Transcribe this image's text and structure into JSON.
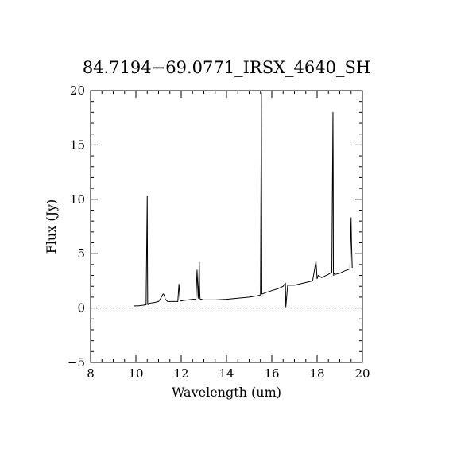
{
  "chart_data": {
    "type": "line",
    "title": "84.7194−69.0771_IRSX_4640_SH",
    "xlabel": "Wavelength (um)",
    "ylabel": "Flux (Jy)",
    "xlim": [
      8,
      20
    ],
    "ylim": [
      -5,
      20
    ],
    "x_ticks": [
      8,
      10,
      12,
      14,
      16,
      18,
      20
    ],
    "x_tick_labels": [
      "8",
      "10",
      "12",
      "14",
      "16",
      "18",
      "20"
    ],
    "y_ticks": [
      -5,
      0,
      5,
      10,
      15,
      20
    ],
    "y_tick_labels": [
      "−5",
      "0",
      "5",
      "10",
      "15",
      "20"
    ],
    "zero_line": true,
    "grid": false,
    "series": [
      {
        "x": [
          9.9,
          10.1,
          10.3,
          10.45,
          10.5,
          10.51,
          10.52,
          10.53,
          10.55,
          10.6,
          10.8,
          11.0,
          11.1,
          11.2,
          11.25,
          11.3,
          11.4,
          11.6,
          11.85,
          11.9,
          11.95,
          12.0,
          12.1,
          12.3,
          12.5,
          12.65,
          12.7,
          12.75,
          12.8,
          12.81,
          12.83,
          12.85,
          12.9,
          13.0,
          13.5,
          14.0,
          14.5,
          15.0,
          15.3,
          15.5,
          15.54,
          15.55,
          15.56,
          15.6,
          15.7,
          16.0,
          16.3,
          16.5,
          16.6,
          16.62,
          16.7,
          17.0,
          17.4,
          17.8,
          17.95,
          18.0,
          18.05,
          18.2,
          18.5,
          18.65,
          18.7,
          18.71,
          18.72,
          18.73,
          18.75,
          18.8,
          19.0,
          19.2,
          19.45,
          19.5,
          19.52,
          19.55
        ],
        "y": [
          0.2,
          0.2,
          0.25,
          0.3,
          10.3,
          5.0,
          0.4,
          0.3,
          0.4,
          0.45,
          0.5,
          0.6,
          0.9,
          1.3,
          1.2,
          0.8,
          0.6,
          0.6,
          0.6,
          2.2,
          0.7,
          0.65,
          0.7,
          0.75,
          0.8,
          0.8,
          3.5,
          0.9,
          4.2,
          2.0,
          0.9,
          0.8,
          0.8,
          0.75,
          0.75,
          0.8,
          0.9,
          1.0,
          1.1,
          1.2,
          19.8,
          9.8,
          1.3,
          1.3,
          1.4,
          1.6,
          1.8,
          2.0,
          2.3,
          0.1,
          2.1,
          2.1,
          2.3,
          2.5,
          4.3,
          2.7,
          3.0,
          2.8,
          3.1,
          3.3,
          18.0,
          12.6,
          3.4,
          3.0,
          3.2,
          3.1,
          3.2,
          3.4,
          3.6,
          8.3,
          5.9,
          3.7
        ]
      }
    ]
  }
}
